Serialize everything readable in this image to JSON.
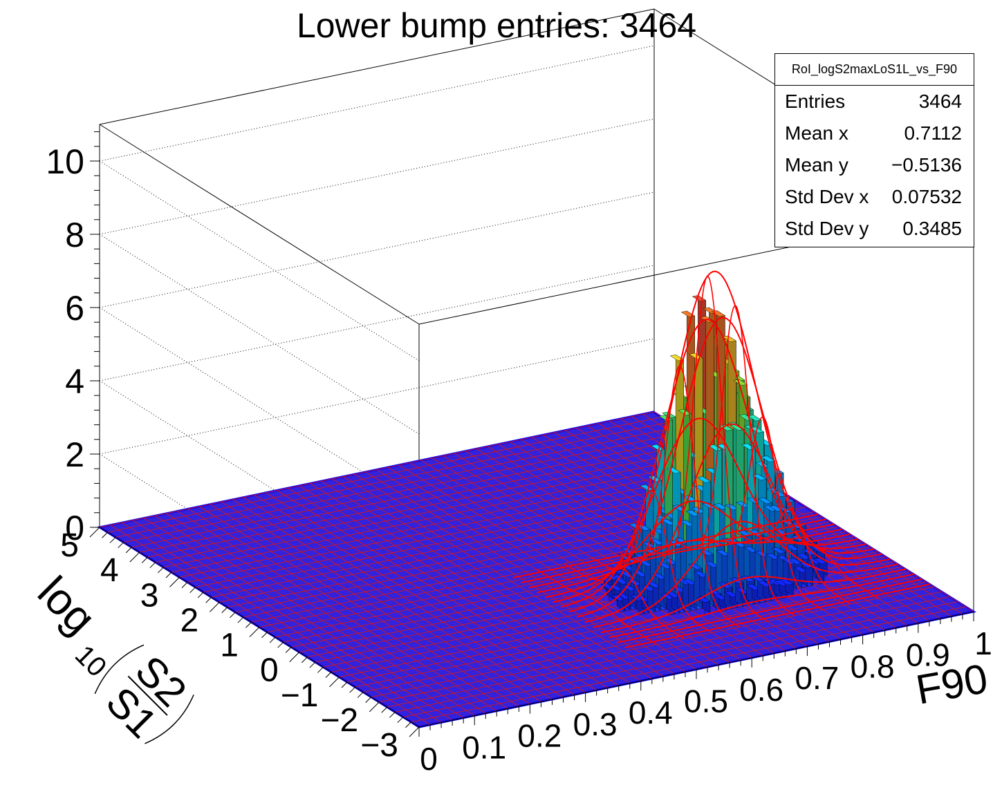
{
  "title": "Lower bump entries: 3464",
  "stats": {
    "name": "RoI_logS2maxLoS1L_vs_F90",
    "rows": [
      {
        "label": "Entries",
        "value": "3464"
      },
      {
        "label": "Mean x",
        "value": "0.7112"
      },
      {
        "label": "Mean y",
        "value": "−0.5136"
      },
      {
        "label": "Std Dev x",
        "value": "0.07532"
      },
      {
        "label": "Std Dev y",
        "value": "0.3485"
      }
    ]
  },
  "chart_data": {
    "type": "lego3d",
    "x_axis": {
      "title": "F90",
      "range": [
        0,
        1
      ],
      "tick_labels": [
        "0",
        "0.1",
        "0.2",
        "0.3",
        "0.4",
        "0.5",
        "0.6",
        "0.7",
        "0.8",
        "0.9",
        "1"
      ]
    },
    "y_axis": {
      "title": "log10(S2/S1)",
      "range": [
        -3,
        5
      ],
      "tick_labels": [
        "−3",
        "−2",
        "−1",
        "0",
        "1",
        "2",
        "3",
        "4",
        "5"
      ]
    },
    "z_axis": {
      "range": [
        0,
        11
      ],
      "tick_labels": [
        "0",
        "2",
        "4",
        "6",
        "8",
        "10"
      ]
    },
    "entries": 3464,
    "mean_x": 0.7112,
    "mean_y": -0.5136,
    "std_dev_x": 0.07532,
    "std_dev_y": 0.3485,
    "peak_content_approx": 8.5,
    "fit_overlay": "2D gaussian surface (red mesh)",
    "colors": {
      "bars_low": "#1515ff",
      "bars_mid": "#00e5ff",
      "bars_high": "#cc1060",
      "grid_line": "#d81515",
      "fit_line": "#ff0000"
    }
  }
}
